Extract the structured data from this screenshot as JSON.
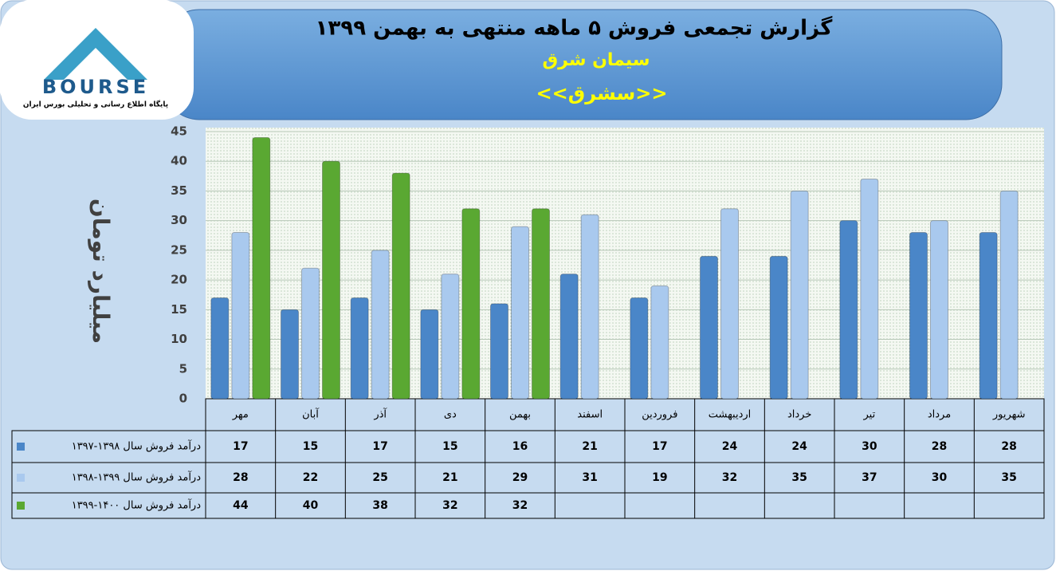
{
  "logo": {
    "text": "BOURSE",
    "tagline": "پایگاه اطلاع رسانی و تحلیلی بورس ایران"
  },
  "chart_data": {
    "type": "bar",
    "title": "گزارش تجمعی فروش ۵ ماهه منتهی به بهمن ۱۳۹۹",
    "subtitle": "سیمان شرق",
    "symbol": "<<سشرق>>",
    "y_label": "میلیارد تومان",
    "categories": [
      "مهر",
      "آبان",
      "آذر",
      "دی",
      "بهمن",
      "اسفند",
      "فروردین",
      "اردیبهشت",
      "خرداد",
      "تیر",
      "مرداد",
      "شهریور"
    ],
    "series": [
      {
        "name": "درآمد فروش سال ۱۳۹۸-۱۳۹۷",
        "color": "#4a86c8",
        "values": [
          17,
          15,
          17,
          15,
          16,
          21,
          17,
          24,
          24,
          30,
          28,
          28
        ]
      },
      {
        "name": "درآمد فروش سال ۱۳۹۹-۱۳۹۸",
        "color": "#a9c9ee",
        "values": [
          28,
          22,
          25,
          21,
          29,
          31,
          19,
          32,
          35,
          37,
          30,
          35
        ]
      },
      {
        "name": "درآمد فروش سال ۱۴۰۰-۱۳۹۹",
        "color": "#5aa832",
        "values": [
          44,
          40,
          38,
          32,
          32,
          null,
          null,
          null,
          null,
          null,
          null,
          null
        ]
      }
    ],
    "ylim": [
      0,
      45
    ],
    "yticks": [
      0,
      5,
      10,
      15,
      20,
      25,
      30,
      35,
      40,
      45
    ],
    "grid": true
  }
}
